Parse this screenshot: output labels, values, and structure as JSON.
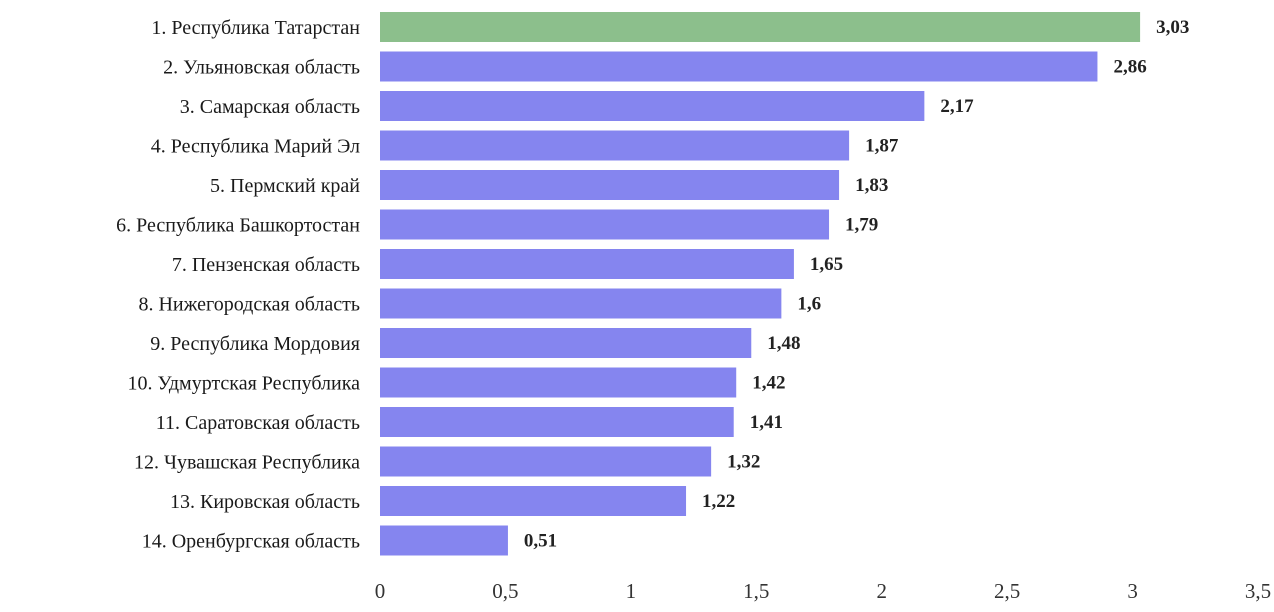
{
  "chart_data": {
    "type": "bar",
    "orientation": "horizontal",
    "categories": [
      "1. Республика Татарстан",
      "2. Ульяновская область",
      "3. Самарская область",
      "4. Республика Марий Эл",
      "5. Пермский край",
      "6. Республика Башкортостан",
      "7. Пензенская область",
      "8. Нижегородская область",
      "9.  Республика Мордовия",
      "10. Удмуртская Республика",
      "11. Саратовская область",
      "12. Чувашская Республика",
      "13. Кировская область",
      "14. Оренбургская область"
    ],
    "values": [
      3.03,
      2.86,
      2.17,
      1.87,
      1.83,
      1.79,
      1.65,
      1.6,
      1.48,
      1.42,
      1.41,
      1.32,
      1.22,
      0.51
    ],
    "value_labels": [
      "3,03",
      "2,86",
      "2,17",
      "1,87",
      "1,83",
      "1,79",
      "1,65",
      "1,6",
      "1,48",
      "1,42",
      "1,41",
      "1,32",
      "1,22",
      "0,51"
    ],
    "xlim": [
      0,
      3.5
    ],
    "ticks": [
      0,
      0.5,
      1,
      1.5,
      2,
      2.5,
      3,
      3.5
    ],
    "tick_labels": [
      "0",
      "0,5",
      "1",
      "1,5",
      "2",
      "2,5",
      "3",
      "3,5"
    ],
    "title": "",
    "xlabel": "",
    "ylabel": "",
    "grid": false,
    "legend": "none",
    "colors": {
      "highlight": "#8cbf8c",
      "bar": "#8585ef",
      "value_text": "#222222",
      "label_text": "#1a1a1a"
    },
    "highlight_index": 0
  }
}
